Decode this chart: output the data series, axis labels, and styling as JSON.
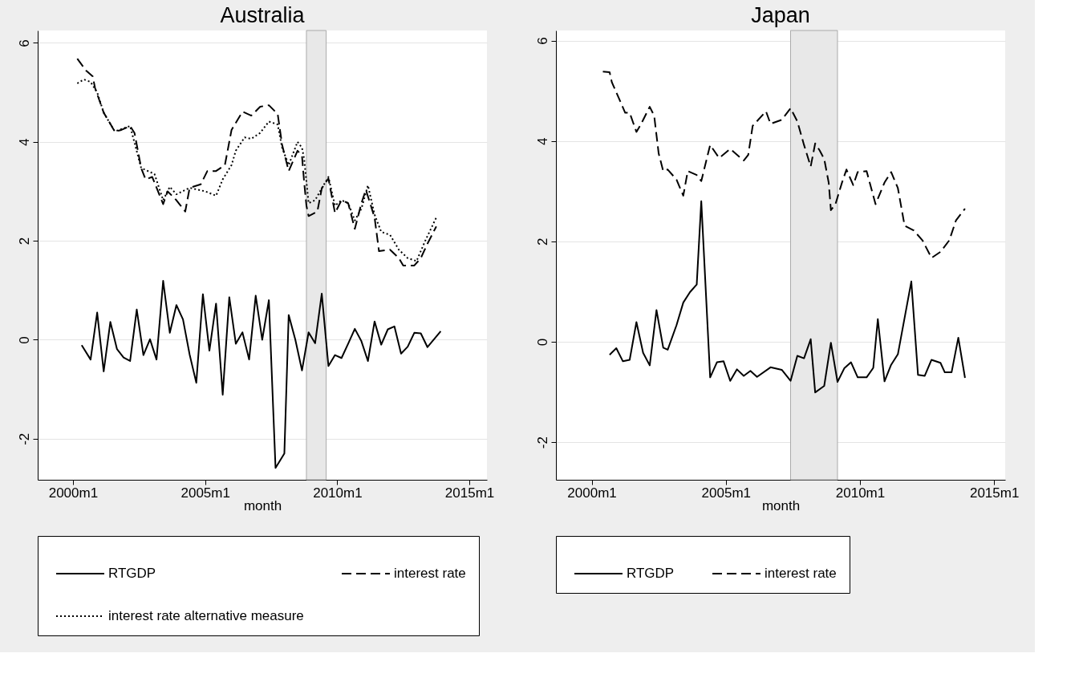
{
  "chart_data": [
    {
      "type": "line",
      "title": "Australia",
      "xlabel": "month",
      "xlim": [
        "1998-09",
        "2015-09"
      ],
      "xticks": [
        {
          "value": "2000-01",
          "label": "2000m1"
        },
        {
          "value": "2005-01",
          "label": "2005m1"
        },
        {
          "value": "2010-01",
          "label": "2010m1"
        },
        {
          "value": "2015-01",
          "label": "2015m1"
        }
      ],
      "ylim": [
        -2.83,
        6.25
      ],
      "yticks": [
        -2,
        0,
        2,
        4,
        6
      ],
      "grid": "y",
      "legend": "bottom",
      "bands": [
        {
          "axis": "x",
          "from": "2008-11",
          "to": "2009-08",
          "color": "#e8e8e8"
        }
      ],
      "series": [
        {
          "name": "RTGDP",
          "color": "#000000",
          "line_style": "solid",
          "x": [
            "2000-05",
            "2000-09",
            "2000-12",
            "2001-03",
            "2001-06",
            "2001-09",
            "2001-12",
            "2002-03",
            "2002-06",
            "2002-09",
            "2002-12",
            "2003-03",
            "2003-06",
            "2003-09",
            "2003-12",
            "2004-03",
            "2004-06",
            "2004-09",
            "2004-12",
            "2005-03",
            "2005-06",
            "2005-09",
            "2005-12",
            "2006-03",
            "2006-06",
            "2006-09",
            "2006-12",
            "2007-03",
            "2007-06",
            "2007-09",
            "2008-01",
            "2008-03",
            "2008-06",
            "2008-09",
            "2008-12",
            "2009-03",
            "2009-06",
            "2009-09",
            "2009-12",
            "2010-03",
            "2010-06",
            "2010-09",
            "2010-12",
            "2011-03",
            "2011-06",
            "2011-09",
            "2011-12",
            "2012-03",
            "2012-06",
            "2012-09",
            "2012-12",
            "2013-03",
            "2013-06",
            "2013-12"
          ],
          "values": [
            -0.11,
            -0.4,
            0.55,
            -0.64,
            0.36,
            -0.19,
            -0.36,
            -0.43,
            0.61,
            -0.31,
            0.01,
            -0.4,
            1.19,
            0.14,
            0.7,
            0.41,
            -0.3,
            -0.87,
            0.92,
            -0.22,
            0.73,
            -1.11,
            0.86,
            -0.08,
            0.15,
            -0.4,
            0.89,
            0.0,
            0.8,
            -2.59,
            -2.3,
            0.5,
            0.0,
            -0.62,
            0.15,
            -0.07,
            0.93,
            -0.53,
            -0.31,
            -0.37,
            -0.08,
            0.22,
            -0.03,
            -0.43,
            0.37,
            -0.1,
            0.21,
            0.27,
            -0.28,
            -0.14,
            0.14,
            0.13,
            -0.15,
            0.17
          ]
        },
        {
          "name": "interest rate",
          "color": "#000000",
          "line_style": "dashed",
          "x": [
            "2000-03",
            "2000-07",
            "2000-10",
            "2000-11",
            "2001-03",
            "2001-05",
            "2001-08",
            "2001-11",
            "2002-03",
            "2002-05",
            "2002-08",
            "2002-10",
            "2003-01",
            "2003-06",
            "2003-08",
            "2003-12",
            "2004-04",
            "2004-06",
            "2004-11",
            "2005-02",
            "2005-06",
            "2005-10",
            "2006-01",
            "2006-06",
            "2006-10",
            "2007-02",
            "2007-06",
            "2007-10",
            "2007-12",
            "2008-03",
            "2008-07",
            "2008-09",
            "2008-10",
            "2008-11",
            "2008-12",
            "2009-04",
            "2009-06",
            "2009-09",
            "2009-12",
            "2010-03",
            "2010-06",
            "2010-09",
            "2010-12",
            "2011-02",
            "2011-06",
            "2011-08",
            "2012-01",
            "2012-05",
            "2012-07",
            "2012-12",
            "2013-03",
            "2013-06",
            "2013-10"
          ],
          "values": [
            5.68,
            5.44,
            5.32,
            5.09,
            4.59,
            4.44,
            4.21,
            4.24,
            4.32,
            4.18,
            3.47,
            3.24,
            3.29,
            2.74,
            3.0,
            2.82,
            2.59,
            3.07,
            3.14,
            3.41,
            3.41,
            3.53,
            4.24,
            4.61,
            4.53,
            4.71,
            4.74,
            4.56,
            3.94,
            3.41,
            3.82,
            3.71,
            3.18,
            2.71,
            2.5,
            2.59,
            3.06,
            3.26,
            2.56,
            2.82,
            2.76,
            2.24,
            2.76,
            3.03,
            2.47,
            1.79,
            1.82,
            1.65,
            1.5,
            1.5,
            1.65,
            1.94,
            2.29
          ]
        },
        {
          "name": "interest rate alternative measure",
          "color": "#000000",
          "line_style": "dotted",
          "x": [
            "2000-03",
            "2000-06",
            "2000-09",
            "2000-12",
            "2001-03",
            "2001-08",
            "2002-03",
            "2002-08",
            "2003-02",
            "2003-06",
            "2003-09",
            "2003-12",
            "2004-06",
            "2005-01",
            "2005-06",
            "2005-09",
            "2006-01",
            "2006-03",
            "2006-07",
            "2006-10",
            "2007-02",
            "2007-06",
            "2007-10",
            "2007-12",
            "2008-03",
            "2008-07",
            "2008-09",
            "2008-10",
            "2008-12",
            "2009-03",
            "2009-06",
            "2009-09",
            "2009-12",
            "2010-03",
            "2010-06",
            "2010-09",
            "2010-12",
            "2011-03",
            "2011-06",
            "2011-09",
            "2012-01",
            "2012-05",
            "2012-09",
            "2013-01",
            "2013-05",
            "2013-10"
          ],
          "values": [
            5.18,
            5.26,
            5.21,
            5.0,
            4.59,
            4.21,
            4.32,
            3.47,
            3.35,
            2.82,
            3.09,
            2.94,
            3.07,
            3.0,
            2.91,
            3.24,
            3.53,
            3.82,
            4.09,
            4.06,
            4.18,
            4.41,
            4.35,
            3.88,
            3.53,
            4.0,
            3.88,
            3.65,
            2.76,
            2.82,
            3.06,
            3.29,
            2.71,
            2.82,
            2.76,
            2.41,
            2.65,
            3.12,
            2.53,
            2.18,
            2.12,
            1.82,
            1.65,
            1.59,
            2.0,
            2.47
          ]
        }
      ]
    },
    {
      "type": "line",
      "title": "Japan",
      "xlabel": "month",
      "xlim": [
        "1998-09",
        "2015-06"
      ],
      "xticks": [
        {
          "value": "2000-01",
          "label": "2000m1"
        },
        {
          "value": "2005-01",
          "label": "2005m1"
        },
        {
          "value": "2010-01",
          "label": "2010m1"
        },
        {
          "value": "2015-01",
          "label": "2015m1"
        }
      ],
      "ylim": [
        -2.75,
        6.2
      ],
      "yticks": [
        -2,
        0,
        2,
        4,
        6
      ],
      "grid": "y",
      "legend": "bottom",
      "bands": [
        {
          "axis": "x",
          "from": "2007-06",
          "to": "2009-03",
          "color": "#e8e8e8"
        }
      ],
      "series": [
        {
          "name": "RTGDP",
          "color": "#000000",
          "line_style": "solid",
          "x": [
            "2000-09",
            "2000-12",
            "2001-03",
            "2001-06",
            "2001-09",
            "2001-12",
            "2002-03",
            "2002-06",
            "2002-09",
            "2002-11",
            "2003-03",
            "2003-06",
            "2003-09",
            "2003-12",
            "2004-02",
            "2004-06",
            "2004-09",
            "2004-12",
            "2005-03",
            "2005-06",
            "2005-09",
            "2005-12",
            "2006-03",
            "2006-09",
            "2007-02",
            "2007-06",
            "2007-09",
            "2007-12",
            "2008-03",
            "2008-05",
            "2008-09",
            "2008-12",
            "2009-03",
            "2009-06",
            "2009-09",
            "2009-12",
            "2010-04",
            "2010-07",
            "2010-09",
            "2010-12",
            "2011-03",
            "2011-06",
            "2011-12",
            "2012-03",
            "2012-06",
            "2012-09",
            "2013-01",
            "2013-03",
            "2013-06",
            "2013-09",
            "2013-12"
          ],
          "values": [
            -0.26,
            -0.13,
            -0.39,
            -0.36,
            0.39,
            -0.22,
            -0.47,
            0.63,
            -0.12,
            -0.16,
            0.33,
            0.78,
            0.99,
            1.14,
            2.8,
            -0.71,
            -0.41,
            -0.39,
            -0.78,
            -0.55,
            -0.68,
            -0.58,
            -0.7,
            -0.51,
            -0.56,
            -0.78,
            -0.28,
            -0.33,
            0.05,
            -1.01,
            -0.88,
            -0.02,
            -0.8,
            -0.53,
            -0.41,
            -0.71,
            -0.71,
            -0.52,
            0.45,
            -0.79,
            -0.46,
            -0.25,
            1.2,
            -0.66,
            -0.68,
            -0.36,
            -0.42,
            -0.61,
            -0.61,
            0.08,
            -0.72
          ]
        },
        {
          "name": "interest rate",
          "color": "#000000",
          "line_style": "dashed",
          "x": [
            "2000-06",
            "2000-09",
            "2000-10",
            "2001-02",
            "2001-04",
            "2001-06",
            "2001-09",
            "2001-11",
            "2002-03",
            "2002-05",
            "2002-07",
            "2002-09",
            "2002-11",
            "2003-03",
            "2003-06",
            "2003-08",
            "2003-12",
            "2004-02",
            "2004-06",
            "2004-10",
            "2005-03",
            "2005-09",
            "2005-11",
            "2006-01",
            "2006-07",
            "2006-09",
            "2007-02",
            "2007-06",
            "2007-09",
            "2007-12",
            "2008-03",
            "2008-05",
            "2008-07",
            "2008-09",
            "2008-11",
            "2008-12",
            "2009-02",
            "2009-05",
            "2009-07",
            "2009-10",
            "2009-12",
            "2010-04",
            "2010-08",
            "2010-12",
            "2011-03",
            "2011-06",
            "2011-09",
            "2012-01",
            "2012-05",
            "2012-09",
            "2013-01",
            "2013-05",
            "2013-08",
            "2013-12"
          ],
          "values": [
            5.38,
            5.37,
            5.17,
            4.76,
            4.56,
            4.56,
            4.18,
            4.33,
            4.68,
            4.5,
            3.75,
            3.4,
            3.43,
            3.23,
            2.91,
            3.4,
            3.32,
            3.2,
            3.92,
            3.66,
            3.84,
            3.61,
            3.72,
            4.3,
            4.59,
            4.34,
            4.42,
            4.65,
            4.39,
            3.92,
            3.49,
            3.95,
            3.81,
            3.64,
            3.17,
            2.62,
            2.74,
            3.17,
            3.43,
            3.12,
            3.38,
            3.4,
            2.74,
            3.17,
            3.38,
            3.06,
            2.31,
            2.22,
            2.02,
            1.67,
            1.79,
            2.02,
            2.42,
            2.65
          ]
        }
      ]
    }
  ]
}
